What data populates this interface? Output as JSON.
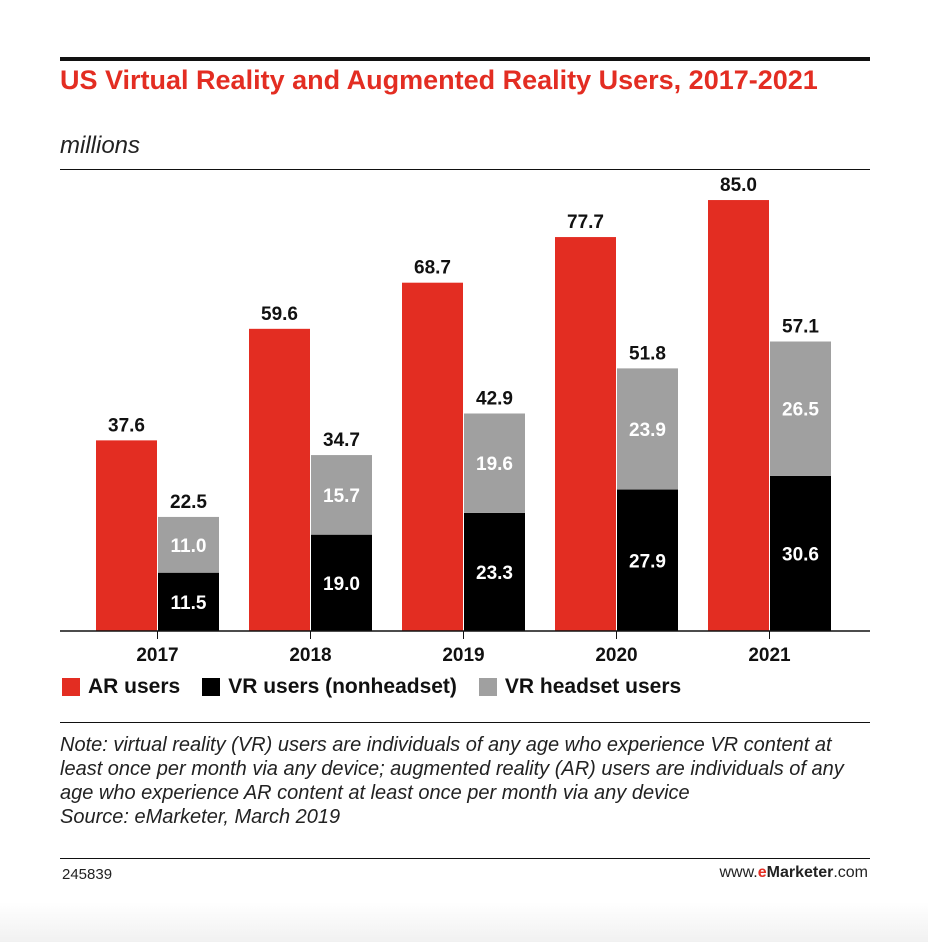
{
  "header": {
    "title": "US Virtual Reality and Augmented Reality Users, 2017-2021",
    "subtitle": "millions"
  },
  "colors": {
    "ar": "#e32d22",
    "vr_nonheadset": "#000000",
    "vr_headset": "#a0a0a0",
    "title": "#e32d22"
  },
  "chart_data": {
    "type": "bar",
    "stacking": "mixed: AR bar alongside stacked VR bar",
    "categories": [
      "2017",
      "2018",
      "2019",
      "2020",
      "2021"
    ],
    "series": [
      {
        "name": "AR users",
        "values": [
          37.6,
          59.6,
          68.7,
          77.7,
          85.0
        ],
        "labels": [
          "37.6",
          "59.6",
          "68.7",
          "77.7",
          "85.0"
        ]
      },
      {
        "name": "VR users (nonheadset)",
        "values": [
          11.5,
          19.0,
          23.3,
          27.9,
          30.6
        ],
        "labels": [
          "11.5",
          "19.0",
          "23.3",
          "27.9",
          "30.6"
        ],
        "stack": "VR"
      },
      {
        "name": "VR headset users",
        "values": [
          11.0,
          15.7,
          19.6,
          23.9,
          26.5
        ],
        "labels": [
          "11.0",
          "15.7",
          "19.6",
          "23.9",
          "26.5"
        ],
        "stack": "VR"
      }
    ],
    "vr_totals": [
      "22.5",
      "34.7",
      "42.9",
      "51.8",
      "57.1"
    ],
    "ylim": [
      0,
      90
    ],
    "grid": false,
    "legend": "bottom"
  },
  "legend": {
    "items": [
      {
        "label": "AR users"
      },
      {
        "label": "VR users (nonheadset)"
      },
      {
        "label": "VR headset users"
      }
    ]
  },
  "footer": {
    "note": "Note: virtual reality (VR) users are individuals of any age who experience VR content at least once per month via any device; augmented reality (AR) users are individuals of any age who experience AR content at least once per month via any device",
    "source": "Source: eMarketer, March 2019",
    "chart_id": "245839",
    "brand": {
      "prefix": "www.",
      "e": "e",
      "rest": "Marketer",
      "suffix": ".com"
    }
  }
}
